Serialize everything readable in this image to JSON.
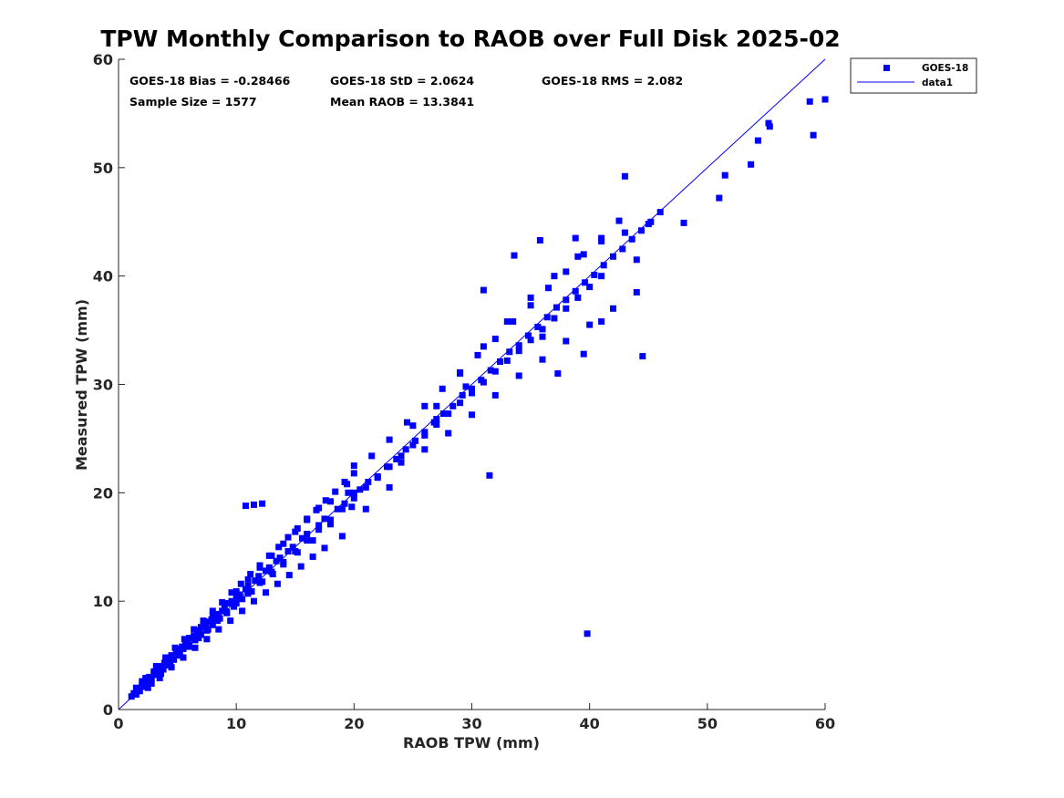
{
  "chart_data": {
    "type": "scatter",
    "title": "TPW Monthly Comparison to RAOB over Full Disk 2025-02",
    "xlabel": "RAOB TPW (mm)",
    "ylabel": "Measured TPW (mm)",
    "xlim": [
      0,
      60
    ],
    "ylim": [
      0,
      60
    ],
    "xticks": [
      "0",
      "10",
      "20",
      "30",
      "40",
      "50",
      "60"
    ],
    "yticks": [
      "0",
      "10",
      "20",
      "30",
      "40",
      "50",
      "60"
    ],
    "grid": false,
    "legend": {
      "position": "outside-top-right",
      "entries": [
        "GOES-18",
        "data1"
      ]
    },
    "annotations": {
      "bias": "GOES-18 Bias = -0.28466",
      "std": "GOES-18 StD = 2.0624",
      "rms": "GOES-18 RMS = 2.082",
      "sample_size": "Sample Size = 1577",
      "mean_raob": "Mean RAOB = 13.3841"
    },
    "colors": {
      "points": "#0000ff",
      "line": "#0000ff"
    },
    "reference_line": {
      "name": "data1",
      "x": [
        0,
        60
      ],
      "y": [
        0,
        60
      ]
    },
    "series": [
      {
        "name": "GOES-18",
        "marker": "square",
        "x": [
          1.1,
          1.3,
          1.5,
          1.6,
          1.8,
          2.0,
          2.1,
          2.2,
          2.4,
          2.5,
          2.6,
          2.8,
          3.0,
          3.1,
          3.3,
          3.4,
          3.6,
          3.8,
          3.9,
          4.1,
          4.2,
          4.4,
          4.5,
          4.7,
          4.9,
          5.0,
          5.2,
          5.4,
          5.5,
          5.7,
          5.9,
          6.0,
          6.2,
          6.4,
          6.5,
          6.7,
          6.9,
          7.0,
          7.2,
          7.4,
          7.5,
          7.7,
          7.9,
          8.0,
          8.2,
          8.4,
          8.6,
          8.8,
          9.0,
          9.2,
          9.4,
          9.6,
          9.8,
          10.0,
          10.3,
          10.5,
          10.8,
          11.0,
          11.3,
          11.6,
          11.9,
          12.2,
          12.5,
          12.8,
          13.1,
          13.4,
          13.7,
          14.0,
          14.4,
          14.8,
          15.2,
          15.6,
          16.0,
          16.5,
          17.0,
          17.5,
          18.0,
          18.6,
          19.2,
          19.8,
          20.5,
          21.2,
          22.0,
          22.8,
          23.6,
          24.4,
          25.2,
          26.0,
          26.8,
          27.6,
          28.4,
          29.2,
          30.0,
          30.8,
          31.6,
          32.4,
          33.2,
          34.0,
          34.8,
          35.6,
          36.4,
          37.2,
          38.0,
          38.8,
          39.6,
          40.4,
          41.2,
          42.0,
          42.8,
          43.6,
          44.4,
          45.2,
          46.0,
          2.0,
          2.5,
          3.0,
          3.5,
          4.0,
          4.5,
          5.0,
          5.5,
          6.0,
          6.5,
          7.0,
          7.5,
          8.0,
          8.5,
          9.0,
          9.5,
          10.0,
          10.5,
          11.0,
          11.5,
          12.0,
          12.5,
          13.0,
          13.5,
          14.0,
          14.5,
          15.0,
          15.5,
          16.0,
          16.5,
          17.0,
          17.5,
          18.0,
          19.0,
          20.0,
          21.0,
          22.0,
          23.0,
          24.0,
          25.0,
          26.0,
          27.0,
          28.0,
          29.0,
          30.0,
          31.0,
          32.0,
          33.0,
          34.0,
          35.0,
          36.0,
          37.0,
          38.0,
          39.0,
          40.0,
          41.0,
          42.0,
          43.0,
          44.0,
          1.5,
          2.3,
          3.2,
          4.0,
          4.8,
          5.6,
          6.4,
          7.2,
          8.0,
          8.8,
          9.6,
          10.4,
          11.2,
          12.0,
          12.8,
          13.6,
          14.4,
          15.2,
          16.0,
          16.8,
          17.6,
          18.4,
          19.2,
          20.0,
          21.5,
          23.0,
          24.5,
          26.0,
          27.5,
          29.0,
          30.5,
          32.0,
          33.5,
          35.0,
          36.5,
          38.0,
          39.5,
          41.0,
          42.5,
          44.0,
          2.8,
          3.6,
          4.4,
          5.2,
          6.0,
          6.8,
          7.6,
          8.4,
          9.2,
          10.0,
          11.0,
          12.0,
          13.0,
          14.0,
          15.0,
          16.0,
          17.0,
          18.0,
          19.0,
          20.0,
          21.0,
          22.0,
          23.0,
          24.0,
          25.0,
          26.0,
          27.0,
          28.0,
          29.0,
          30.0,
          31.0,
          32.0,
          33.0,
          34.0,
          35.0,
          36.0,
          37.0,
          38.0,
          39.0,
          40.0,
          41.0,
          39.8,
          27.0,
          31.5,
          31.0,
          33.6,
          29.5,
          19.5,
          19.4,
          20.0,
          12.2,
          11.5,
          10.8,
          43.0,
          38.8,
          35.8,
          36.0,
          37.3,
          39.5,
          41.0,
          45.0,
          44.5,
          48.0,
          51.0,
          51.5,
          53.7,
          54.3,
          55.2,
          55.3,
          58.7,
          59.0,
          60.0
        ],
        "y": [
          1.2,
          1.5,
          1.4,
          1.9,
          1.7,
          2.2,
          2.4,
          2.1,
          2.8,
          2.6,
          3.0,
          2.9,
          3.3,
          3.5,
          3.2,
          3.8,
          4.0,
          3.7,
          4.3,
          4.5,
          4.1,
          4.7,
          5.0,
          4.6,
          5.2,
          5.5,
          5.0,
          5.8,
          5.6,
          6.0,
          6.3,
          5.9,
          6.6,
          6.8,
          6.4,
          7.1,
          7.3,
          6.9,
          7.6,
          7.8,
          7.3,
          8.1,
          8.3,
          7.8,
          8.6,
          8.8,
          8.4,
          9.1,
          9.4,
          8.9,
          9.8,
          10.0,
          9.5,
          10.4,
          10.6,
          10.2,
          11.1,
          11.4,
          10.9,
          11.9,
          12.3,
          11.8,
          12.8,
          13.1,
          12.5,
          13.7,
          14.0,
          13.4,
          14.6,
          15.0,
          14.5,
          15.8,
          16.2,
          15.6,
          17.0,
          17.6,
          17.1,
          18.5,
          19.0,
          18.7,
          20.3,
          21.0,
          21.5,
          22.4,
          23.1,
          24.0,
          24.8,
          25.6,
          26.5,
          27.3,
          28.0,
          29.0,
          29.6,
          30.4,
          31.3,
          32.1,
          33.0,
          33.6,
          34.5,
          35.3,
          36.2,
          37.1,
          37.8,
          38.6,
          39.4,
          40.1,
          41.0,
          41.8,
          42.5,
          43.4,
          44.2,
          45.0,
          45.9,
          2.6,
          2.0,
          3.5,
          2.9,
          4.6,
          3.9,
          5.6,
          4.8,
          6.6,
          5.7,
          7.6,
          6.5,
          8.7,
          7.4,
          9.8,
          8.2,
          10.9,
          9.1,
          12.0,
          10.0,
          13.1,
          10.8,
          14.2,
          11.6,
          15.3,
          12.4,
          16.4,
          13.2,
          17.5,
          14.1,
          18.6,
          14.9,
          19.2,
          16.0,
          22.5,
          18.5,
          21.5,
          20.5,
          22.8,
          26.2,
          24.0,
          28.0,
          25.5,
          31.0,
          27.2,
          33.5,
          29.0,
          35.8,
          30.8,
          38.0,
          32.3,
          40.0,
          34.0,
          41.8,
          35.5,
          43.2,
          37.0,
          44.0,
          38.5,
          2.0,
          2.9,
          4.0,
          4.8,
          5.7,
          6.5,
          7.4,
          8.2,
          9.1,
          9.9,
          10.8,
          11.6,
          12.5,
          13.3,
          14.2,
          15.0,
          15.9,
          16.7,
          17.6,
          18.4,
          19.3,
          20.1,
          21.0,
          21.8,
          23.4,
          24.9,
          26.5,
          28.0,
          29.6,
          31.1,
          32.7,
          34.2,
          35.8,
          37.3,
          38.9,
          40.4,
          42.0,
          43.5,
          45.1,
          41.5,
          2.4,
          3.3,
          4.1,
          5.0,
          5.8,
          6.6,
          7.4,
          8.2,
          9.0,
          9.8,
          10.7,
          11.7,
          12.7,
          13.6,
          14.6,
          15.6,
          16.6,
          17.5,
          18.5,
          19.5,
          20.5,
          21.4,
          22.4,
          23.4,
          24.4,
          25.3,
          26.3,
          27.3,
          28.3,
          29.2,
          30.2,
          31.2,
          32.2,
          33.1,
          34.1,
          35.1,
          36.1,
          37.0,
          38.0,
          39.0,
          40.0,
          7.0,
          26.8,
          21.6,
          38.7,
          41.9,
          29.8,
          20.0,
          20.8,
          20.0,
          19.0,
          18.9,
          18.8,
          49.2,
          43.5,
          43.3,
          34.4,
          31.0,
          32.8,
          35.8,
          44.8,
          32.6,
          44.9,
          47.2,
          49.3,
          50.3,
          52.5,
          54.1,
          53.8,
          56.1,
          53.0,
          56.3
        ]
      }
    ]
  }
}
